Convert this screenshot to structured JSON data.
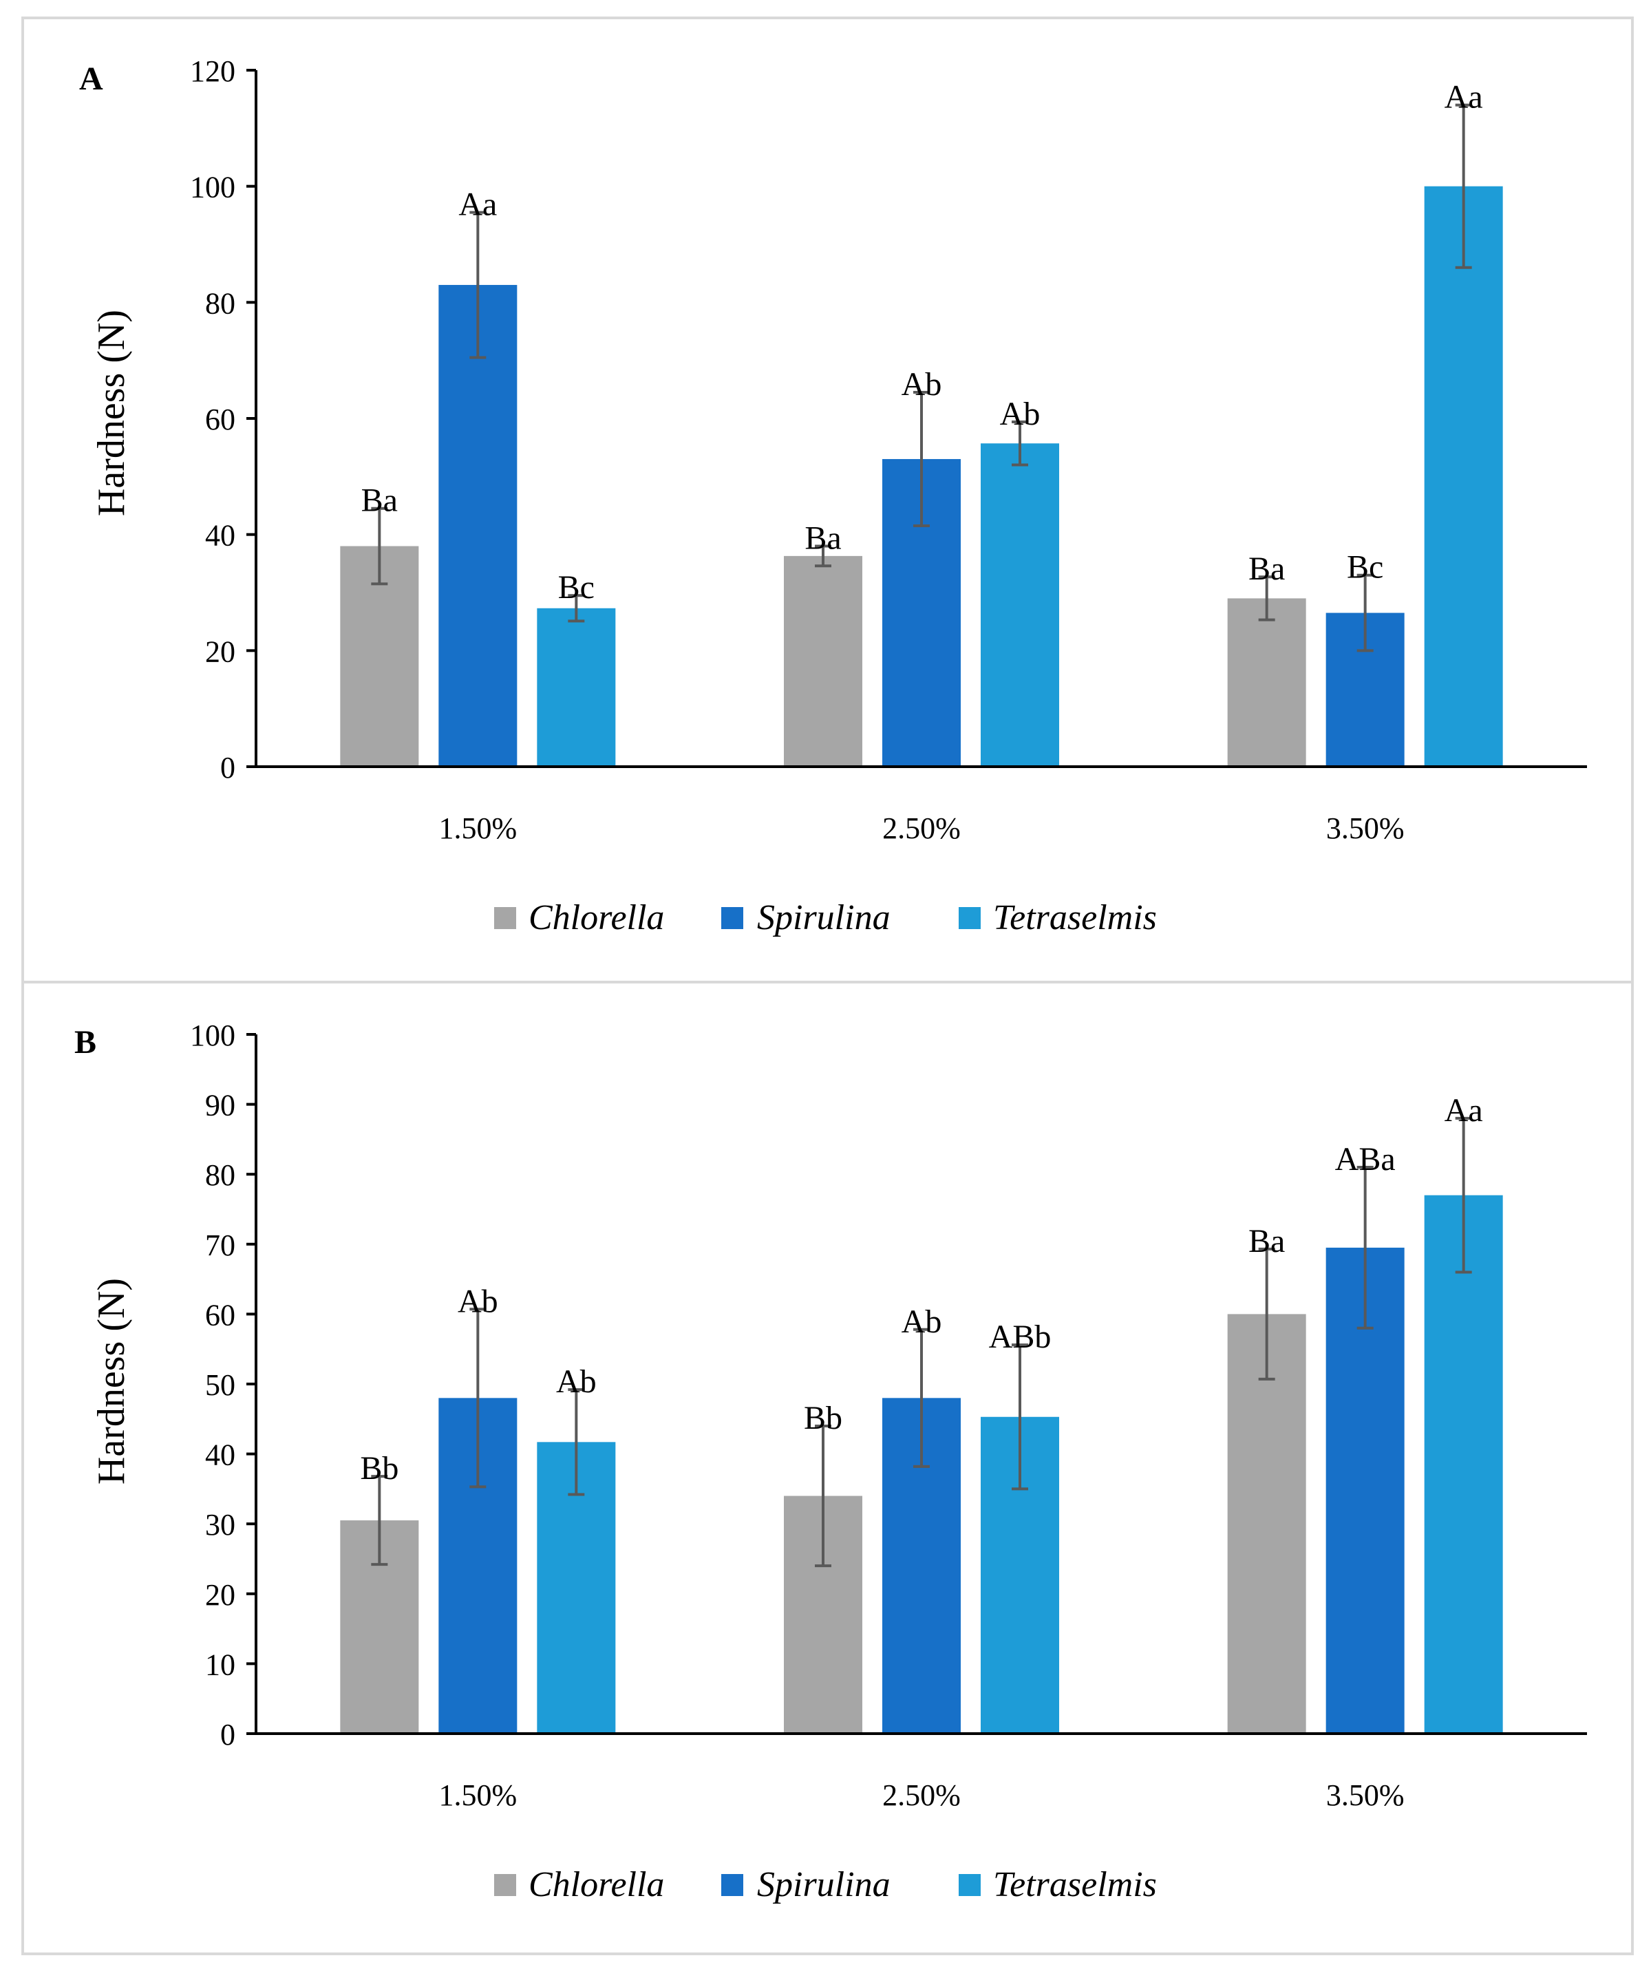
{
  "figure": {
    "panel_labels": [
      "A",
      "B"
    ]
  },
  "colors": {
    "Chlorella": "#a6a6a6",
    "Spirulina": "#1770c8",
    "Tetraselmis": "#1e9cd7",
    "error_bar": "#595959",
    "axis": "#000000",
    "frame": "#d9d9d9"
  },
  "chart_data": [
    {
      "type": "bar",
      "panel": "A",
      "title": "",
      "xlabel": "",
      "ylabel": "Hardness (N)",
      "ylim": [
        0,
        120
      ],
      "yticks": [
        0,
        20,
        40,
        60,
        80,
        100,
        120
      ],
      "categories": [
        "1.50%",
        "2.50%",
        "3.50%"
      ],
      "legend": {
        "position": "bottom",
        "entries": [
          "Chlorella",
          "Spirulina",
          "Tetraselmis"
        ]
      },
      "series": [
        {
          "name": "Chlorella",
          "values": [
            38,
            36.3,
            29
          ],
          "errors": [
            6.5,
            1.7,
            3.7
          ],
          "labels": [
            "Ba",
            "Ba",
            "Ba"
          ]
        },
        {
          "name": "Spirulina",
          "values": [
            83,
            53,
            26.5
          ],
          "errors": [
            12.5,
            11.5,
            6.5
          ],
          "labels": [
            "Aa",
            "Ab",
            "Bc"
          ]
        },
        {
          "name": "Tetraselmis",
          "values": [
            27.3,
            55.7,
            100
          ],
          "errors": [
            2.2,
            3.7,
            14
          ],
          "labels": [
            "Bc",
            "Ab",
            "Aa"
          ]
        }
      ]
    },
    {
      "type": "bar",
      "panel": "B",
      "title": "",
      "xlabel": "",
      "ylabel": "Hardness (N)",
      "ylim": [
        0,
        100
      ],
      "yticks": [
        0,
        10,
        20,
        30,
        40,
        50,
        60,
        70,
        80,
        90,
        100
      ],
      "categories": [
        "1.50%",
        "2.50%",
        "3.50%"
      ],
      "legend": {
        "position": "bottom",
        "entries": [
          "Chlorella",
          "Spirulina",
          "Tetraselmis"
        ]
      },
      "series": [
        {
          "name": "Chlorella",
          "values": [
            30.5,
            34,
            60
          ],
          "errors": [
            6.3,
            10,
            9.3
          ],
          "labels": [
            "Bb",
            "Bb",
            "Ba"
          ]
        },
        {
          "name": "Spirulina",
          "values": [
            48,
            48,
            69.5
          ],
          "errors": [
            12.7,
            9.8,
            11.5
          ],
          "labels": [
            "Ab",
            "Ab",
            "ABa"
          ]
        },
        {
          "name": "Tetraselmis",
          "values": [
            41.7,
            45.3,
            77
          ],
          "errors": [
            7.5,
            10.3,
            11
          ],
          "labels": [
            "Ab",
            "ABb",
            "Aa"
          ]
        }
      ]
    }
  ]
}
